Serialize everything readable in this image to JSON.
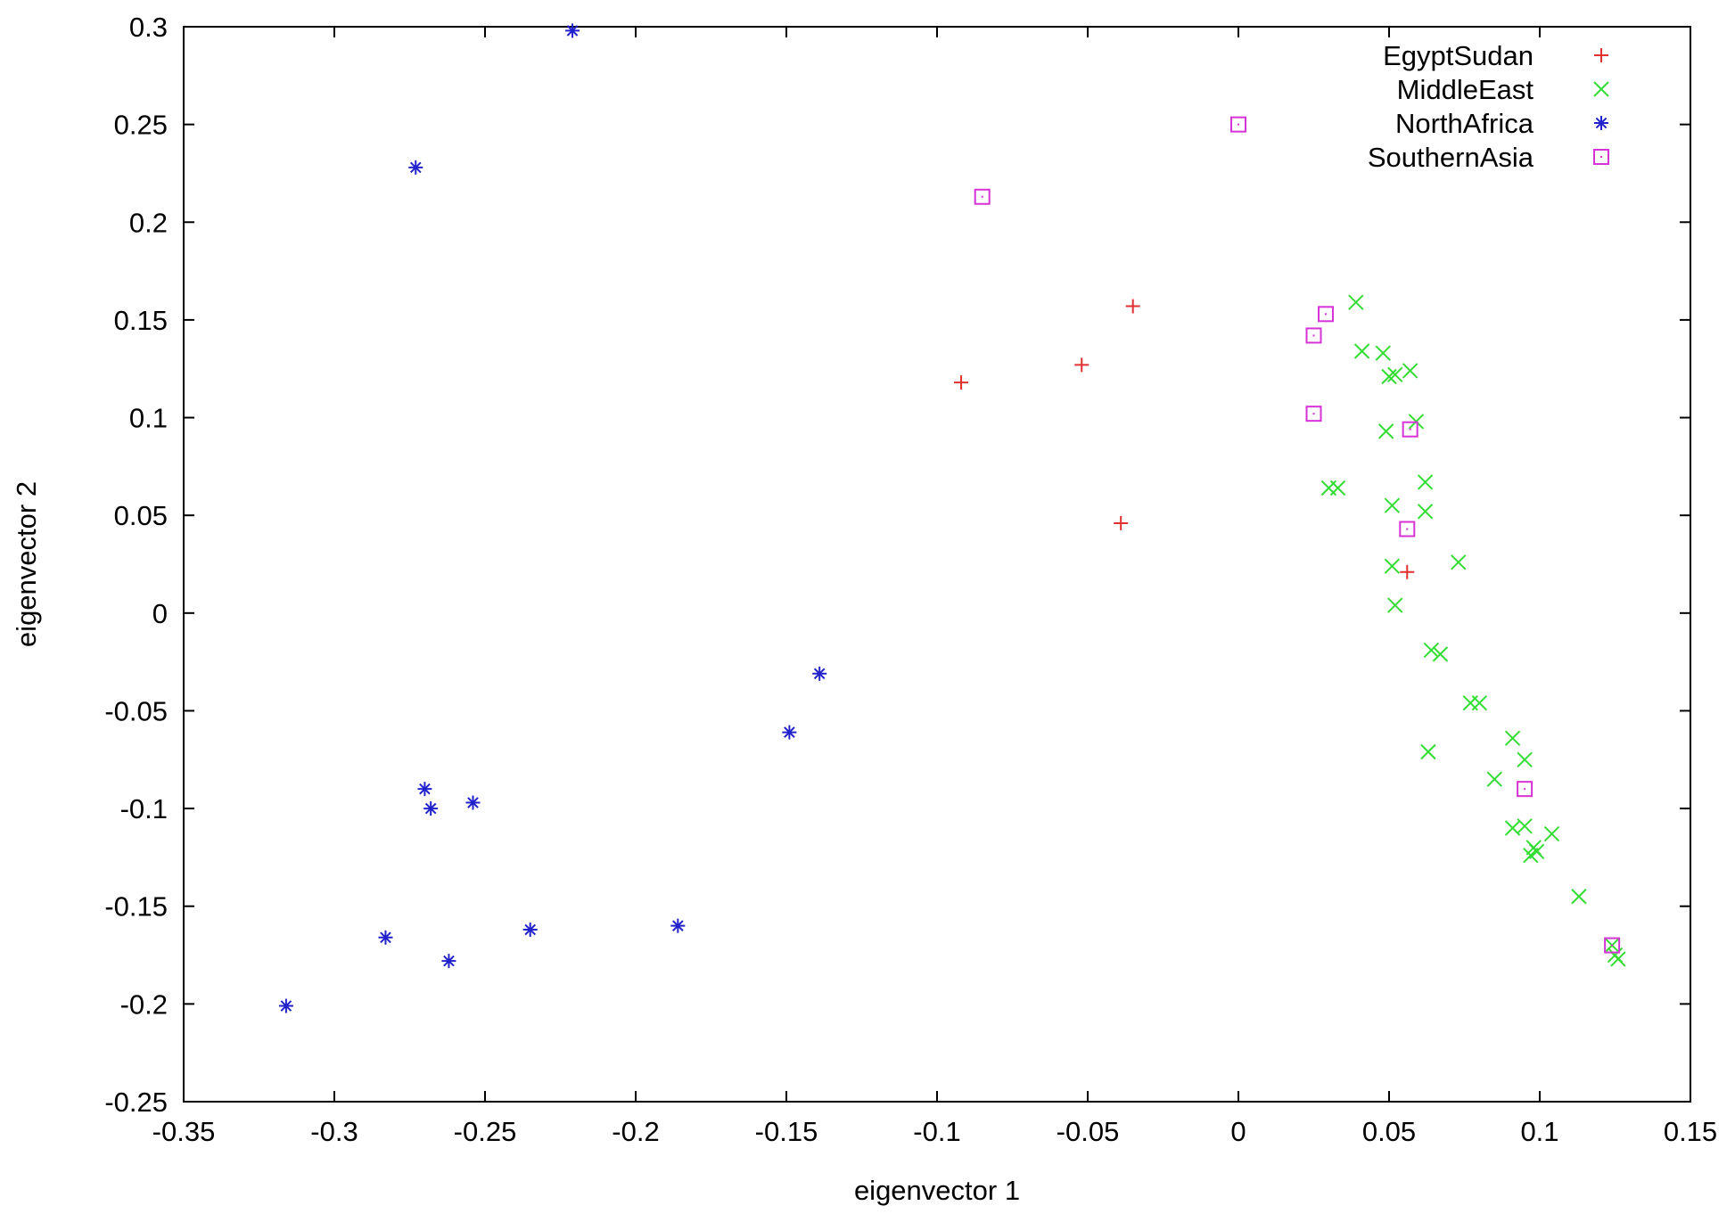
{
  "chart_data": {
    "type": "scatter",
    "title": "",
    "xlabel": "eigenvector 1",
    "ylabel": "eigenvector 2",
    "xlim": [
      -0.35,
      0.15
    ],
    "ylim": [
      -0.25,
      0.3
    ],
    "xticks": [
      -0.35,
      -0.3,
      -0.25,
      -0.2,
      -0.15,
      -0.1,
      -0.05,
      0,
      0.05,
      0.1,
      0.15
    ],
    "yticks": [
      -0.25,
      -0.2,
      -0.15,
      -0.1,
      -0.05,
      0,
      0.05,
      0.1,
      0.15,
      0.2,
      0.25,
      0.3
    ],
    "xtick_labels": [
      "-0.35",
      "-0.3",
      "-0.25",
      "-0.2",
      "-0.15",
      "-0.1",
      "-0.05",
      "0",
      "0.05",
      "0.1",
      "0.15"
    ],
    "ytick_labels": [
      "-0.25",
      "-0.2",
      "-0.15",
      "-0.1",
      "-0.05",
      "0",
      "0.05",
      "0.1",
      "0.15",
      "0.2",
      "0.25",
      "0.3"
    ],
    "grid": false,
    "legend_position": "top-right",
    "series": [
      {
        "name": "EgyptSudan",
        "marker": "plus",
        "color": "#e03030",
        "points": [
          [
            -0.092,
            0.118
          ],
          [
            -0.052,
            0.127
          ],
          [
            -0.035,
            0.157
          ],
          [
            -0.039,
            0.046
          ],
          [
            0.056,
            0.021
          ]
        ]
      },
      {
        "name": "MiddleEast",
        "marker": "cross",
        "color": "#33dd33",
        "points": [
          [
            0.039,
            0.159
          ],
          [
            0.041,
            0.134
          ],
          [
            0.048,
            0.133
          ],
          [
            0.05,
            0.121
          ],
          [
            0.052,
            0.122
          ],
          [
            0.057,
            0.124
          ],
          [
            0.059,
            0.098
          ],
          [
            0.049,
            0.093
          ],
          [
            0.03,
            0.064
          ],
          [
            0.033,
            0.064
          ],
          [
            0.062,
            0.067
          ],
          [
            0.051,
            0.055
          ],
          [
            0.062,
            0.052
          ],
          [
            0.073,
            0.026
          ],
          [
            0.051,
            0.024
          ],
          [
            0.052,
            0.004
          ],
          [
            0.064,
            -0.019
          ],
          [
            0.067,
            -0.021
          ],
          [
            0.077,
            -0.046
          ],
          [
            0.08,
            -0.046
          ],
          [
            0.091,
            -0.064
          ],
          [
            0.063,
            -0.071
          ],
          [
            0.095,
            -0.075
          ],
          [
            0.085,
            -0.085
          ],
          [
            0.091,
            -0.11
          ],
          [
            0.095,
            -0.109
          ],
          [
            0.098,
            -0.12
          ],
          [
            0.104,
            -0.113
          ],
          [
            0.097,
            -0.124
          ],
          [
            0.099,
            -0.122
          ],
          [
            0.113,
            -0.145
          ],
          [
            0.124,
            -0.17
          ],
          [
            0.125,
            -0.175
          ],
          [
            0.126,
            -0.177
          ]
        ]
      },
      {
        "name": "NorthAfrica",
        "marker": "star",
        "color": "#2222cc",
        "points": [
          [
            -0.221,
            0.298
          ],
          [
            -0.273,
            0.228
          ],
          [
            -0.139,
            -0.031
          ],
          [
            -0.149,
            -0.061
          ],
          [
            -0.27,
            -0.09
          ],
          [
            -0.268,
            -0.1
          ],
          [
            -0.254,
            -0.097
          ],
          [
            -0.186,
            -0.16
          ],
          [
            -0.235,
            -0.162
          ],
          [
            -0.283,
            -0.166
          ],
          [
            -0.262,
            -0.178
          ],
          [
            -0.316,
            -0.201
          ]
        ]
      },
      {
        "name": "SouthernAsia",
        "marker": "square",
        "color": "#d633d6",
        "points": [
          [
            0.0,
            0.25
          ],
          [
            -0.085,
            0.213
          ],
          [
            0.029,
            0.153
          ],
          [
            0.025,
            0.142
          ],
          [
            0.025,
            0.102
          ],
          [
            0.057,
            0.094
          ],
          [
            0.056,
            0.043
          ],
          [
            0.095,
            -0.09
          ],
          [
            0.124,
            -0.17
          ]
        ]
      }
    ]
  }
}
